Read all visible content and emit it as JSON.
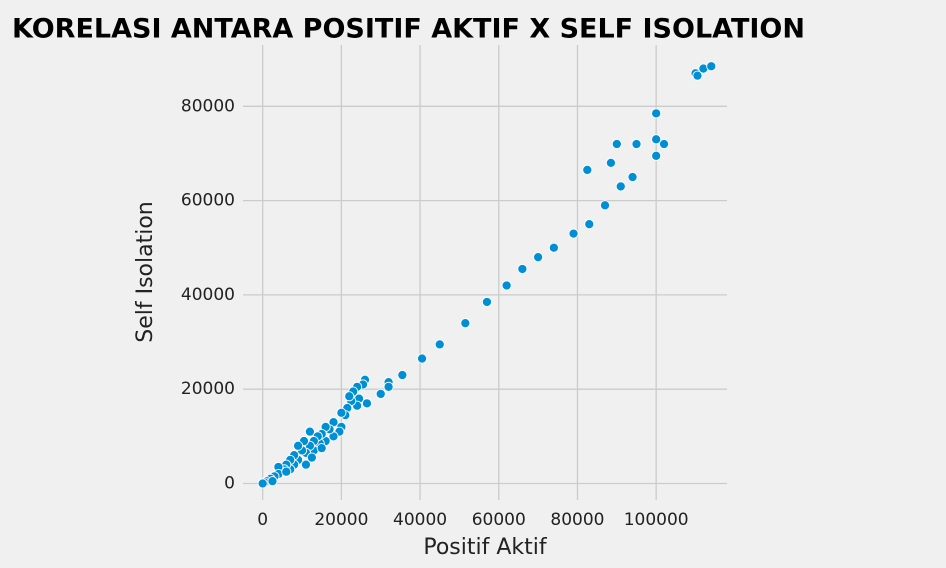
{
  "chart_data": {
    "type": "scatter",
    "title": "KORELASI ANTARA POSITIF AKTIF X SELF ISOLATION",
    "x_label": "Positif Aktif",
    "y_label": "Self Isolation",
    "color": "#008fd5",
    "grid": true,
    "xlim": [
      -5000,
      118000
    ],
    "ylim": [
      -3500,
      93000
    ],
    "xticks": [
      0,
      20000,
      40000,
      60000,
      80000,
      100000
    ],
    "yticks": [
      0,
      20000,
      40000,
      60000,
      80000
    ],
    "x": [
      110000,
      110500,
      112000,
      114000,
      100000,
      100000,
      102000,
      100000,
      95000,
      90000,
      88500,
      91000,
      94000,
      87000,
      83000,
      82500,
      79000,
      74000,
      70000,
      66000,
      62000,
      57000,
      51500,
      45000,
      40500,
      35500,
      32000,
      32000,
      30000,
      26500,
      26000,
      25500,
      24000,
      24500,
      24000,
      23000,
      22500,
      22000,
      21500,
      21000,
      20000,
      20000,
      19500,
      18000,
      18000,
      17000,
      16000,
      16000,
      15000,
      14500,
      14000,
      13000,
      13000,
      12000,
      12000,
      11000,
      10500,
      10000,
      9000,
      9000,
      8000,
      8000,
      7000,
      7000,
      6000,
      5500,
      5000,
      4000,
      4000,
      3000,
      2000,
      1000,
      500,
      0,
      2500,
      6000,
      11000,
      12500,
      15000
    ],
    "values": [
      87000,
      86500,
      88000,
      88500,
      78500,
      73000,
      72000,
      69500,
      72000,
      72000,
      68000,
      63000,
      65000,
      59000,
      55000,
      66500,
      53000,
      50000,
      48000,
      45500,
      42000,
      38500,
      34000,
      29500,
      26500,
      23000,
      21500,
      20500,
      19000,
      17000,
      22000,
      21000,
      20500,
      18000,
      16500,
      19500,
      17500,
      18500,
      16000,
      14500,
      15000,
      12000,
      11000,
      13000,
      10000,
      11500,
      12000,
      9000,
      10500,
      8500,
      10000,
      9000,
      7000,
      11000,
      8000,
      6500,
      9000,
      7000,
      8000,
      5000,
      6000,
      4000,
      5000,
      3000,
      4000,
      3000,
      2500,
      3500,
      2000,
      1500,
      1000,
      500,
      200,
      0,
      500,
      2500,
      4000,
      5500,
      7500
    ]
  }
}
